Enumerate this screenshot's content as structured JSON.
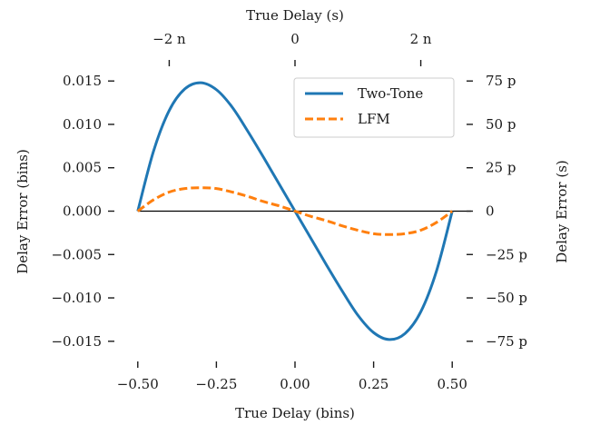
{
  "chart_data": {
    "type": "line",
    "xlabel": "True Delay (bins)",
    "ylabel": "Delay Error (bins)",
    "xlabel_top": "True Delay (s)",
    "ylabel_right": "Delay Error (s)",
    "xlim": [
      -0.56,
      0.56
    ],
    "ylim": [
      -0.0168,
      0.0168
    ],
    "zero_line": true,
    "grid": false,
    "legend": "top-right",
    "x_ticks": [
      -0.5,
      -0.25,
      0.0,
      0.25,
      0.5
    ],
    "x_tick_labels": [
      "−0.50",
      "−0.25",
      "0.00",
      "0.25",
      "0.50"
    ],
    "y_ticks": [
      0.015,
      0.01,
      0.005,
      0.0,
      -0.005,
      -0.01,
      -0.015
    ],
    "y_tick_labels": [
      "0.015",
      "0.010",
      "0.005",
      "0.000",
      "−0.005",
      "−0.010",
      "−0.015"
    ],
    "top_ticks": [
      -0.4,
      0.0,
      0.4
    ],
    "top_tick_labels": [
      "−2 n",
      "0",
      "2 n"
    ],
    "right_ticks": [
      0.015,
      0.01,
      0.005,
      0.0,
      -0.005,
      -0.01,
      -0.015
    ],
    "right_tick_labels": [
      "75 p",
      "50 p",
      "25 p",
      "0",
      "−25 p",
      "−50 p",
      "−75 p"
    ],
    "series": [
      {
        "name": "Two-Tone",
        "color": "#1f77b4",
        "style": "solid",
        "x": [
          -0.5,
          -0.45,
          -0.4,
          -0.35,
          -0.3,
          -0.25,
          -0.2,
          -0.15,
          -0.1,
          -0.05,
          0.0,
          0.05,
          0.1,
          0.15,
          0.2,
          0.25,
          0.3,
          0.35,
          0.4,
          0.45,
          0.5
        ],
        "y": [
          0.0,
          0.0069,
          0.0116,
          0.0141,
          0.0148,
          0.014,
          0.012,
          0.0092,
          0.0062,
          0.0031,
          0.0,
          -0.0031,
          -0.0062,
          -0.0092,
          -0.012,
          -0.014,
          -0.0148,
          -0.0141,
          -0.0116,
          -0.0069,
          0.0
        ]
      },
      {
        "name": "LFM",
        "color": "#ff7f0e",
        "style": "dashed",
        "x": [
          -0.5,
          -0.45,
          -0.4,
          -0.35,
          -0.3,
          -0.25,
          -0.2,
          -0.15,
          -0.1,
          -0.05,
          0.0,
          0.05,
          0.1,
          0.15,
          0.2,
          0.25,
          0.3,
          0.35,
          0.4,
          0.45,
          0.5
        ],
        "y": [
          0.0,
          0.0013,
          0.0022,
          0.0026,
          0.0027,
          0.0026,
          0.0022,
          0.0017,
          0.0011,
          0.0006,
          0.0,
          -0.0006,
          -0.0011,
          -0.0017,
          -0.0022,
          -0.0026,
          -0.0027,
          -0.0026,
          -0.0022,
          -0.0013,
          0.0
        ]
      }
    ]
  }
}
